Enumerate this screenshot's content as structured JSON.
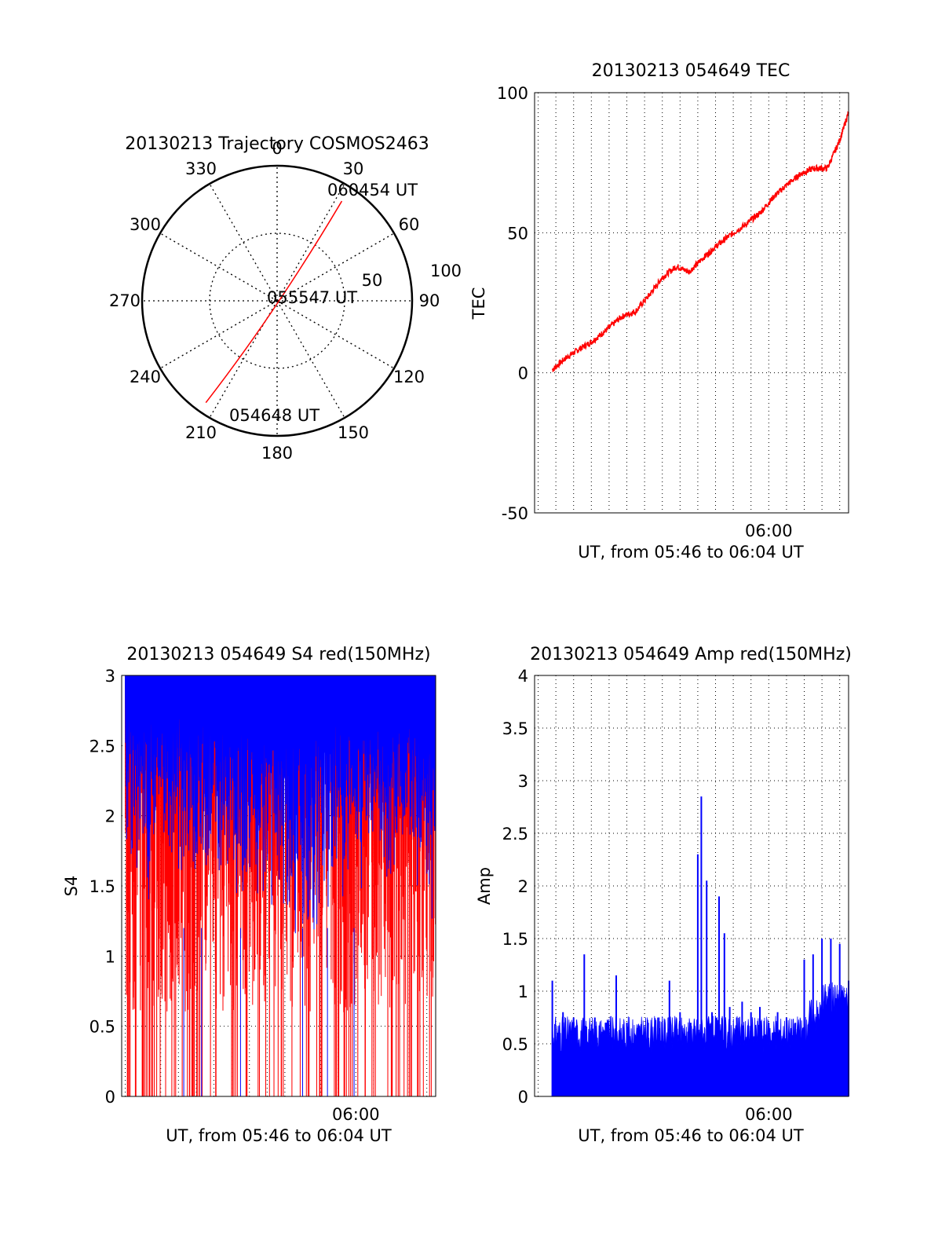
{
  "colors": {
    "trace_red": "#ff0000",
    "trace_blue": "#0000ff",
    "axis": "#000000",
    "grid": "#000000"
  },
  "chart_data": [
    {
      "id": "trajectory",
      "type": "polar",
      "title": "20130213 Trajectory COSMOS2463",
      "azimuth_labels": [
        "0",
        "30",
        "60",
        "90",
        "120",
        "150",
        "180",
        "210",
        "240",
        "270",
        "300",
        "330"
      ],
      "radial_labels": [
        "50",
        "100"
      ],
      "rmax": 100,
      "grid": true,
      "track": {
        "start_az": 215,
        "start_r": 92,
        "end_az": 33,
        "end_r": 88,
        "closest_az": 200,
        "closest_r": 5
      },
      "annotations": [
        "054648 UT",
        "055547 UT",
        "060454 UT"
      ]
    },
    {
      "id": "tec",
      "type": "line",
      "title": "20130213 054649 TEC",
      "xlabel": "UT, from 05:46 to 06:04 UT",
      "ylabel": "TEC",
      "xlim_min": [
        346.8,
        364.5
      ],
      "xtick": {
        "pos": 360,
        "label": "06:00"
      },
      "ylim": [
        -50,
        100
      ],
      "yticks": [
        "100",
        "50",
        "0",
        "-50"
      ],
      "grid": true,
      "series": [
        {
          "color": "#ff0000",
          "x": [
            347.8,
            348.5,
            349.2,
            350.0,
            350.8,
            351.7,
            352.5,
            353.3,
            354.0,
            354.8,
            355.5,
            356.3,
            357.0,
            357.8,
            358.7,
            359.5,
            360.3,
            361.0,
            361.8,
            362.5,
            363.3,
            364.0,
            364.5
          ],
          "y": [
            1,
            5,
            8,
            11,
            15,
            20,
            22,
            28,
            34,
            38,
            36,
            41,
            45,
            49,
            53,
            57,
            63,
            67,
            71,
            73,
            73,
            83,
            93
          ]
        }
      ]
    },
    {
      "id": "s4",
      "type": "line",
      "title": "20130213 054649 S4 red(150MHz)",
      "xlabel": "UT, from 05:46 to 06:04 UT",
      "ylabel": "S4",
      "xlim_min": [
        346.8,
        364.5
      ],
      "xtick": {
        "pos": 360,
        "label": "06:00"
      },
      "ylim": [
        0,
        3
      ],
      "yticks": [
        "3",
        "2.5",
        "2",
        "1.5",
        "1",
        "0.5",
        "0"
      ],
      "grid": true,
      "series": [
        {
          "name": "",
          "color": "#ff0000",
          "description_values_min": [
            347.0,
            364.5
          ],
          "y_range": [
            0,
            3
          ]
        },
        {
          "name": "",
          "color": "#0000ff",
          "lower_envelope_x": [
            347.0,
            348.0,
            349.5,
            351.0,
            352.5,
            354.0,
            355.5,
            356.5,
            357.5,
            359.0,
            360.5,
            362.0,
            363.0,
            364.0,
            364.5
          ],
          "lower_envelope_y": [
            1.8,
            1.5,
            1.7,
            1.5,
            1.6,
            1.3,
            1.4,
            1.0,
            1.2,
            1.5,
            1.6,
            1.5,
            1.7,
            1.4,
            1.1
          ]
        }
      ]
    },
    {
      "id": "amp",
      "type": "bar",
      "title": "20130213 054649 Amp red(150MHz)",
      "xlabel": "UT, from 05:46 to 06:04 UT",
      "ylabel": "Amp",
      "xlim_min": [
        346.8,
        364.5
      ],
      "xtick": {
        "pos": 360,
        "label": "06:00"
      },
      "ylim": [
        0,
        4
      ],
      "yticks": [
        "4",
        "3.5",
        "3",
        "2.5",
        "2",
        "1.5",
        "1",
        "0.5",
        "0"
      ],
      "grid": true,
      "series": [
        {
          "color": "#0000ff",
          "x": [
            347.8,
            348.4,
            349.0,
            349.6,
            350.2,
            350.8,
            351.4,
            352.0,
            352.6,
            353.2,
            353.8,
            354.4,
            355.0,
            355.6,
            356.0,
            356.2,
            356.5,
            356.8,
            357.2,
            357.5,
            357.8,
            358.2,
            358.5,
            359.0,
            359.5,
            360.0,
            360.5,
            361.0,
            361.5,
            362.0,
            362.5,
            363.0,
            363.5,
            364.0,
            364.5
          ],
          "y": [
            1.1,
            0.8,
            0.75,
            1.35,
            0.75,
            0.7,
            1.15,
            0.7,
            0.65,
            0.7,
            0.75,
            1.1,
            0.8,
            0.7,
            2.3,
            2.85,
            2.05,
            0.8,
            1.9,
            1.55,
            0.85,
            0.75,
            0.9,
            0.8,
            0.85,
            0.7,
            0.8,
            0.75,
            0.7,
            1.3,
            1.35,
            1.5,
            1.5,
            1.45,
            1.1
          ]
        }
      ]
    }
  ]
}
